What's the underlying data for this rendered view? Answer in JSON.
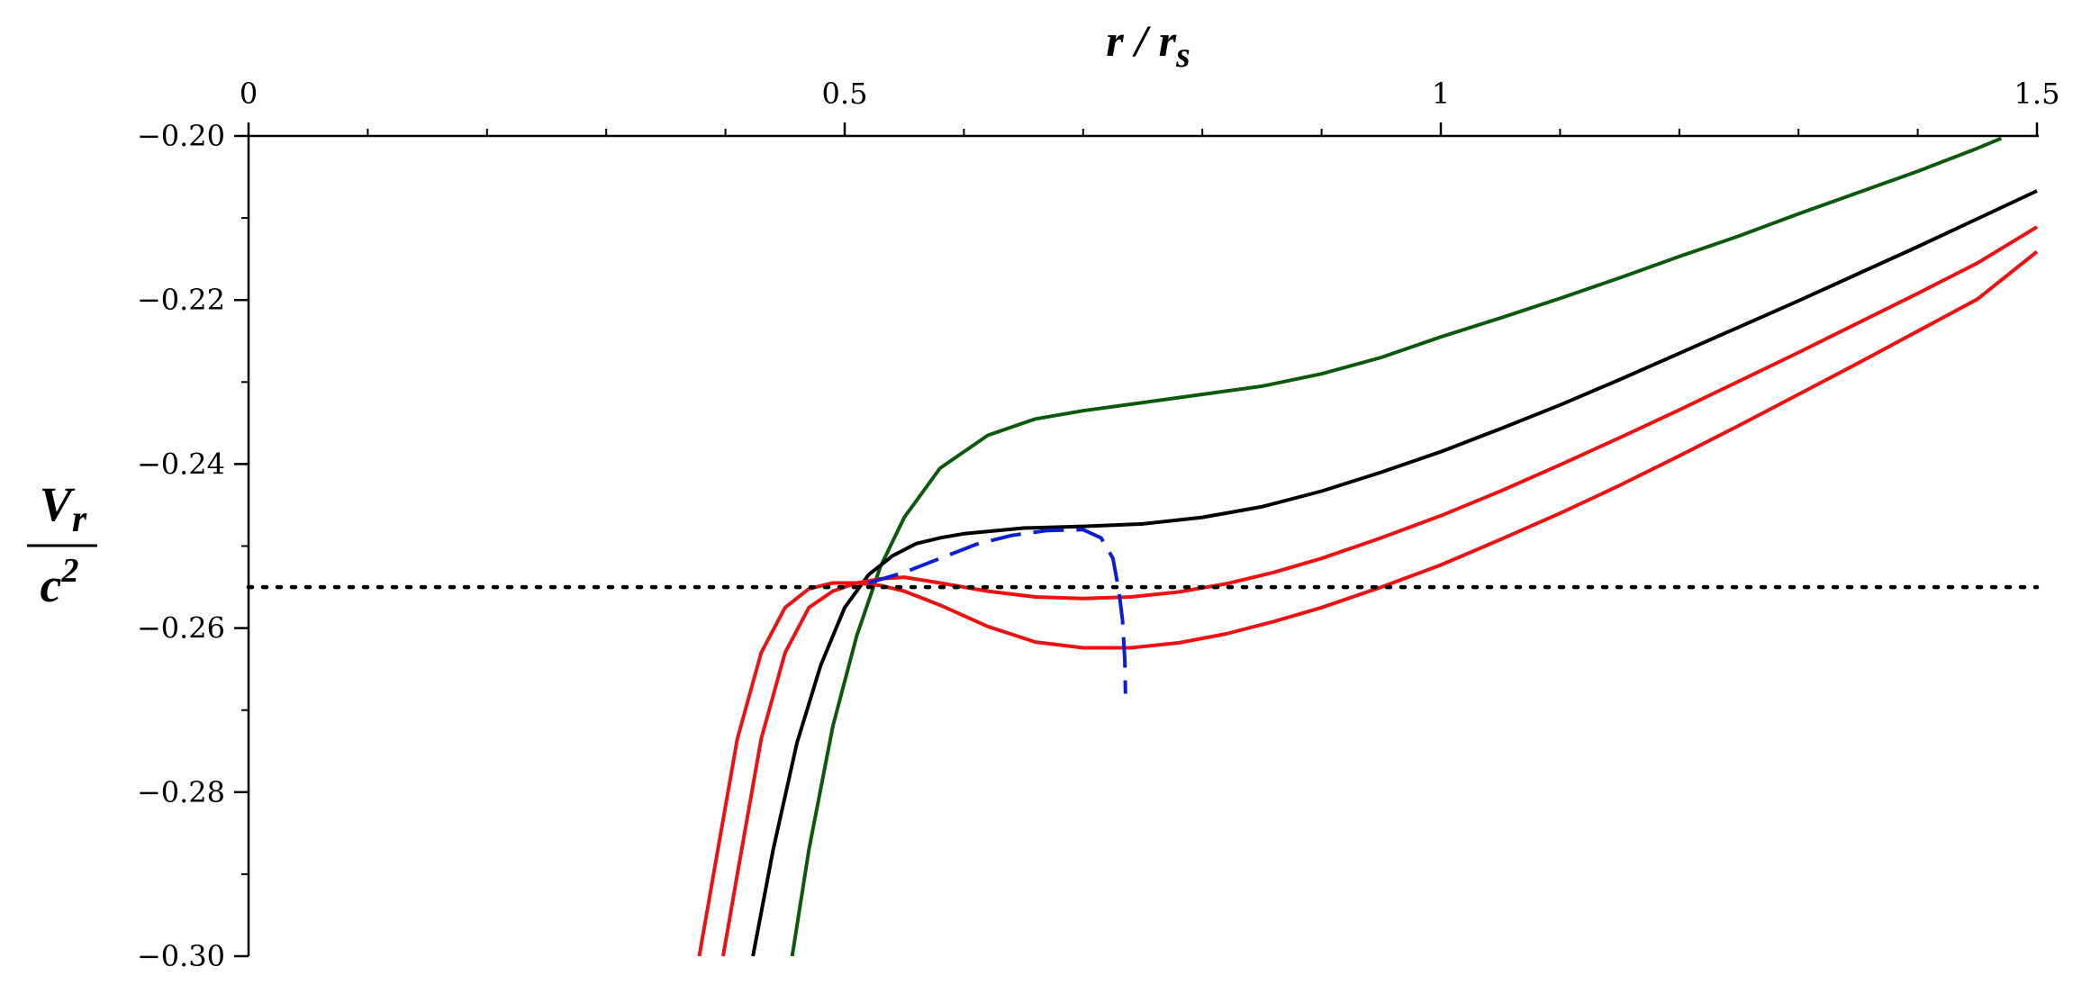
{
  "chart_data": {
    "type": "line",
    "title": "",
    "xlabel": {
      "main": "r / r",
      "sub": "s"
    },
    "ylabel": {
      "num_main": "V",
      "num_sub": "r",
      "den_main": "c",
      "den_sup": "2"
    },
    "xlim": [
      0,
      1.5
    ],
    "ylim": [
      -0.3,
      -0.2
    ],
    "x_axis_position": "top",
    "grid": false,
    "legend": "none",
    "x_ticks": [
      {
        "value": 0,
        "label": "0"
      },
      {
        "value": 0.5,
        "label": "0.5"
      },
      {
        "value": 1,
        "label": "1"
      },
      {
        "value": 1.5,
        "label": "1.5"
      }
    ],
    "y_ticks": [
      {
        "value": -0.2,
        "label": "−0.20"
      },
      {
        "value": -0.22,
        "label": "−0.22"
      },
      {
        "value": -0.24,
        "label": "−0.24"
      },
      {
        "value": -0.26,
        "label": "−0.26"
      },
      {
        "value": -0.28,
        "label": "−0.28"
      },
      {
        "value": -0.3,
        "label": "−0.30"
      }
    ],
    "x_minor_step": 0.1,
    "y_minor_step": 0.01,
    "series": [
      {
        "color": "#0b5a0b",
        "style": "solid",
        "x": [
          0.456,
          0.47,
          0.49,
          0.51,
          0.53,
          0.55,
          0.58,
          0.62,
          0.66,
          0.7,
          0.75,
          0.8,
          0.85,
          0.9,
          0.95,
          1.0,
          1.05,
          1.1,
          1.15,
          1.2,
          1.25,
          1.3,
          1.35,
          1.4,
          1.45,
          1.47
        ],
        "y": [
          -0.3,
          -0.287,
          -0.272,
          -0.261,
          -0.2525,
          -0.2465,
          -0.2405,
          -0.2365,
          -0.2345,
          -0.2335,
          -0.2325,
          -0.2315,
          -0.2305,
          -0.229,
          -0.227,
          -0.2245,
          -0.2222,
          -0.2198,
          -0.2173,
          -0.2147,
          -0.2122,
          -0.2095,
          -0.2069,
          -0.2043,
          -0.2015,
          -0.2003
        ]
      },
      {
        "color": "#000000",
        "style": "solid",
        "x": [
          0.423,
          0.44,
          0.46,
          0.48,
          0.5,
          0.52,
          0.54,
          0.56,
          0.58,
          0.6,
          0.65,
          0.7,
          0.75,
          0.8,
          0.85,
          0.9,
          0.95,
          1.0,
          1.05,
          1.1,
          1.15,
          1.2,
          1.25,
          1.3,
          1.35,
          1.4,
          1.45,
          1.5
        ],
        "y": [
          -0.3,
          -0.287,
          -0.274,
          -0.2645,
          -0.2575,
          -0.2535,
          -0.2512,
          -0.2497,
          -0.249,
          -0.2485,
          -0.2478,
          -0.2476,
          -0.2473,
          -0.2465,
          -0.2452,
          -0.2433,
          -0.241,
          -0.2385,
          -0.2357,
          -0.2328,
          -0.2297,
          -0.2265,
          -0.2233,
          -0.2201,
          -0.2168,
          -0.2135,
          -0.2101,
          -0.2067
        ]
      },
      {
        "color": "#ee1111",
        "style": "solid",
        "x": [
          0.398,
          0.41,
          0.43,
          0.45,
          0.47,
          0.49,
          0.51,
          0.53,
          0.55,
          0.58,
          0.62,
          0.66,
          0.7,
          0.74,
          0.78,
          0.82,
          0.86,
          0.9,
          0.95,
          1.0,
          1.05,
          1.1,
          1.15,
          1.2,
          1.25,
          1.3,
          1.35,
          1.4,
          1.45,
          1.5
        ],
        "y": [
          -0.3,
          -0.29,
          -0.2735,
          -0.263,
          -0.2575,
          -0.2555,
          -0.2545,
          -0.254,
          -0.2538,
          -0.2545,
          -0.2555,
          -0.2562,
          -0.2564,
          -0.2562,
          -0.2556,
          -0.2546,
          -0.2532,
          -0.2515,
          -0.249,
          -0.2463,
          -0.2433,
          -0.2401,
          -0.2368,
          -0.2334,
          -0.2299,
          -0.2264,
          -0.2228,
          -0.2192,
          -0.2155,
          -0.2111
        ]
      },
      {
        "color": "#ee1111",
        "style": "solid",
        "x": [
          0.378,
          0.39,
          0.41,
          0.43,
          0.45,
          0.47,
          0.49,
          0.51,
          0.53,
          0.55,
          0.58,
          0.62,
          0.66,
          0.7,
          0.74,
          0.78,
          0.82,
          0.86,
          0.9,
          0.95,
          1.0,
          1.05,
          1.1,
          1.15,
          1.2,
          1.25,
          1.3,
          1.35,
          1.4,
          1.45,
          1.5
        ],
        "y": [
          -0.3,
          -0.29,
          -0.2735,
          -0.263,
          -0.2575,
          -0.2552,
          -0.2545,
          -0.2545,
          -0.2548,
          -0.2555,
          -0.2572,
          -0.2598,
          -0.2617,
          -0.2624,
          -0.2624,
          -0.2618,
          -0.2607,
          -0.2592,
          -0.2575,
          -0.255,
          -0.2523,
          -0.2492,
          -0.246,
          -0.2426,
          -0.239,
          -0.2353,
          -0.2315,
          -0.2277,
          -0.2238,
          -0.2199,
          -0.2141
        ]
      },
      {
        "color": "#0a1ed6",
        "style": "dashed",
        "x": [
          0.52,
          0.55,
          0.58,
          0.61,
          0.64,
          0.67,
          0.7,
          0.715,
          0.725,
          0.73,
          0.733,
          0.735,
          0.7355
        ],
        "y": [
          -0.2545,
          -0.2532,
          -0.2515,
          -0.2498,
          -0.2487,
          -0.2481,
          -0.248,
          -0.249,
          -0.2515,
          -0.2555,
          -0.259,
          -0.264,
          -0.268
        ]
      },
      {
        "color": "#000000",
        "style": "dotted",
        "x": [
          0.0,
          1.5
        ],
        "y": [
          -0.255,
          -0.255
        ]
      }
    ]
  }
}
